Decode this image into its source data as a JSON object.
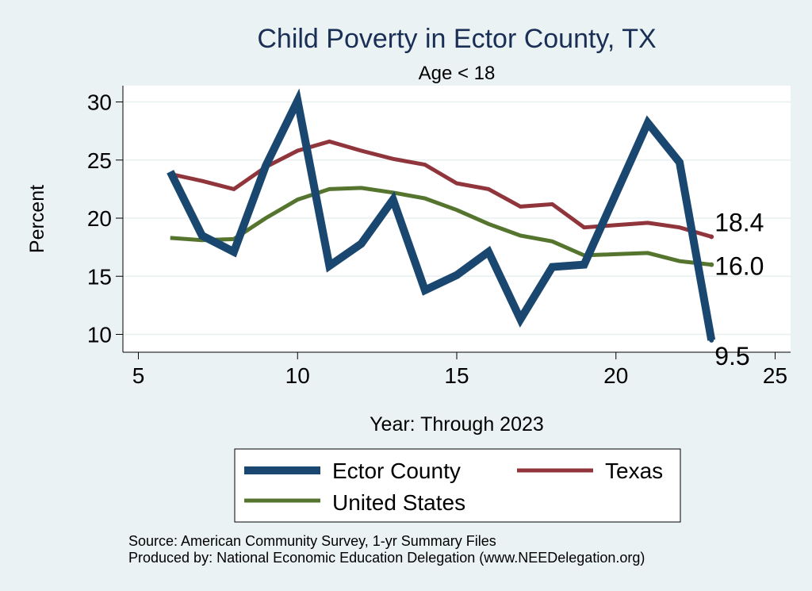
{
  "chart_data": {
    "type": "line",
    "title": "Child Poverty in Ector County, TX",
    "subtitle": "Age < 18",
    "xlabel": "Year: Through 2023",
    "ylabel": "Percent",
    "xlim": [
      5,
      25
    ],
    "ylim": [
      9,
      31
    ],
    "xticks": [
      5,
      10,
      15,
      20,
      25
    ],
    "yticks": [
      10,
      15,
      20,
      25,
      30
    ],
    "legend_position": "bottom",
    "series": [
      {
        "name": "Ector County",
        "color": "#1a476f",
        "x": [
          6,
          7,
          8,
          9,
          10,
          11,
          12,
          13,
          14,
          15,
          16,
          17,
          18,
          19,
          20,
          21,
          22,
          23
        ],
        "values": [
          24.0,
          18.5,
          17.1,
          24.5,
          30.1,
          15.9,
          17.8,
          21.6,
          13.8,
          15.1,
          17.1,
          11.3,
          15.8,
          16.0,
          22.1,
          28.2,
          24.8,
          9.5
        ],
        "end_label": "9.5"
      },
      {
        "name": "Texas",
        "color": "#90353b",
        "x": [
          6,
          7,
          8,
          9,
          10,
          11,
          12,
          13,
          14,
          15,
          16,
          17,
          18,
          19,
          20,
          21,
          22,
          23
        ],
        "values": [
          23.8,
          23.2,
          22.5,
          24.4,
          25.8,
          26.6,
          25.8,
          25.1,
          24.6,
          23.0,
          22.5,
          21.0,
          21.2,
          19.2,
          19.4,
          19.6,
          19.2,
          18.4
        ],
        "end_label": "18.4"
      },
      {
        "name": "United States",
        "color": "#55752f",
        "x": [
          6,
          7,
          8,
          9,
          10,
          11,
          12,
          13,
          14,
          15,
          16,
          17,
          18,
          19,
          20,
          21,
          22,
          23
        ],
        "values": [
          18.3,
          18.1,
          18.2,
          20.0,
          21.6,
          22.5,
          22.6,
          22.2,
          21.7,
          20.7,
          19.5,
          18.5,
          18.0,
          16.8,
          16.9,
          17.0,
          16.3,
          16.0
        ],
        "end_label": "16.0"
      }
    ],
    "notes": [
      "Source: American Community Survey, 1-yr Summary Files",
      "Produced by: National Economic Education Delegation (www.NEEDelegation.org)"
    ]
  }
}
